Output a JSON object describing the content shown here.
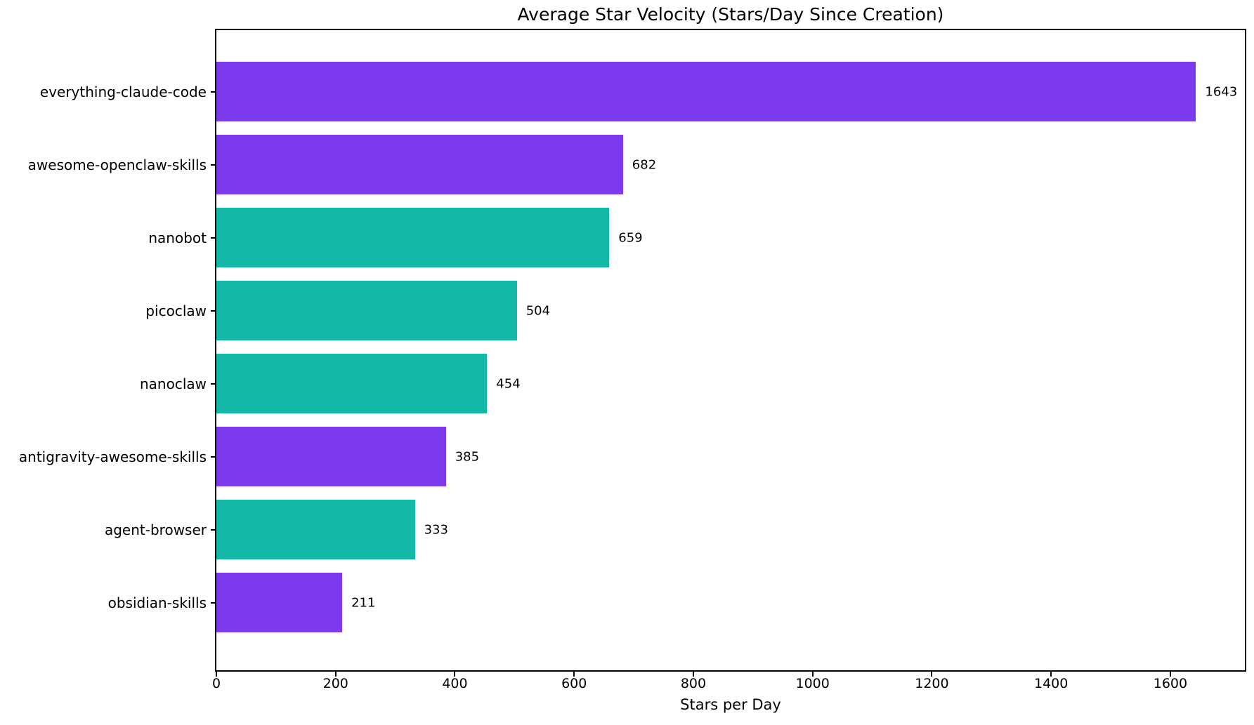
{
  "chart_data": {
    "type": "bar",
    "orientation": "horizontal",
    "title": "Average Star Velocity (Stars/Day Since Creation)",
    "xlabel": "Stars per Day",
    "ylabel": "",
    "categories": [
      "everything-claude-code",
      "awesome-openclaw-skills",
      "nanobot",
      "picoclaw",
      "nanoclaw",
      "antigravity-awesome-skills",
      "agent-browser",
      "obsidian-skills"
    ],
    "values": [
      1643,
      682,
      659,
      504,
      454,
      385,
      333,
      211
    ],
    "bar_colors": [
      "#7C3AED",
      "#7C3AED",
      "#14B8A6",
      "#14B8A6",
      "#14B8A6",
      "#7C3AED",
      "#14B8A6",
      "#7C3AED"
    ],
    "xlim": [
      0,
      1725
    ],
    "xticks": [
      0,
      200,
      400,
      600,
      800,
      1000,
      1200,
      1400,
      1600
    ],
    "grid": false,
    "legend": null,
    "colors": {
      "purple": "#7C3AED",
      "teal": "#14B8A6",
      "text": "#000000",
      "background": "#ffffff",
      "spine": "#000000"
    }
  }
}
